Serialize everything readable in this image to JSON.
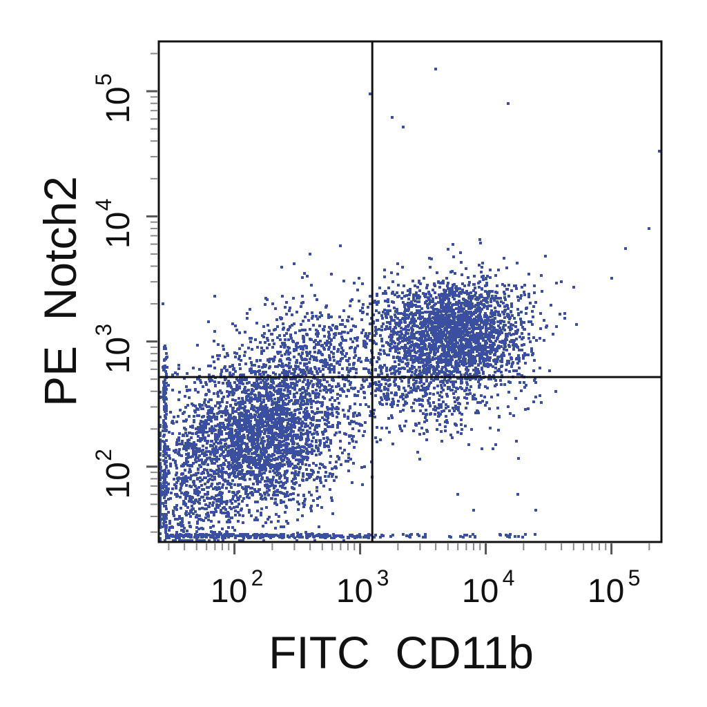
{
  "chart_data": {
    "type": "scatter",
    "subtype": "flow-cytometry-dot-plot",
    "xlabel": "FITC  CD11b",
    "ylabel": "PE  Notch2",
    "x_scale": "log",
    "y_scale": "log",
    "xlim": [
      25,
      250000
    ],
    "ylim": [
      25,
      250000
    ],
    "x_ticks": [
      {
        "base": "10",
        "exp": "2",
        "value": 100
      },
      {
        "base": "10",
        "exp": "3",
        "value": 1000
      },
      {
        "base": "10",
        "exp": "4",
        "value": 10000
      },
      {
        "base": "10",
        "exp": "5",
        "value": 100000
      }
    ],
    "y_ticks": [
      {
        "base": "10",
        "exp": "2",
        "value": 100
      },
      {
        "base": "10",
        "exp": "3",
        "value": 1000
      },
      {
        "base": "10",
        "exp": "4",
        "value": 10000
      },
      {
        "base": "10",
        "exp": "5",
        "value": 100000
      }
    ],
    "quadrant_gates": {
      "x": 1250,
      "y": 520
    },
    "point_color": "#3a4fa0",
    "populations": [
      {
        "cx": 160,
        "cy": 180,
        "sx": 0.32,
        "sy": 0.3,
        "n": 2600
      },
      {
        "cx": 45,
        "cy": 55,
        "sx": 0.25,
        "sy": 0.22,
        "n": 500
      },
      {
        "cx": 420,
        "cy": 700,
        "sx": 0.28,
        "sy": 0.25,
        "n": 650
      },
      {
        "cx": 5500,
        "cy": 1150,
        "sx": 0.3,
        "sy": 0.22,
        "n": 2400
      },
      {
        "cx": 3200,
        "cy": 380,
        "sx": 0.28,
        "sy": 0.18,
        "n": 350
      }
    ],
    "floor_events": {
      "y": 27,
      "x_range": [
        28,
        1200
      ],
      "n": 260
    },
    "floor_events_right": {
      "y": 27,
      "x_range": [
        1300,
        25000
      ],
      "n": 40
    },
    "left_edge_events": {
      "x": 27,
      "y_range": [
        28,
        1000
      ],
      "n": 150
    },
    "outliers": [
      [
        4000,
        150000
      ],
      [
        15000,
        80000
      ],
      [
        1800,
        62000
      ],
      [
        2200,
        52000
      ],
      [
        1200,
        95000
      ],
      [
        240000,
        33000
      ],
      [
        200000,
        8000
      ],
      [
        130000,
        5500
      ],
      [
        100000,
        3200
      ],
      [
        50000,
        2700
      ],
      [
        40000,
        3000
      ],
      [
        30000,
        4800
      ],
      [
        9000,
        6500
      ],
      [
        5500,
        6000
      ],
      [
        700,
        5800
      ],
      [
        400,
        5000
      ],
      [
        300,
        4200
      ],
      [
        70,
        2300
      ],
      [
        27,
        2000
      ],
      [
        15000,
        300
      ],
      [
        12000,
        150
      ],
      [
        8000,
        45
      ],
      [
        6000,
        60
      ],
      [
        18000,
        60
      ],
      [
        25000,
        45
      ],
      [
        36000,
        400
      ]
    ]
  }
}
